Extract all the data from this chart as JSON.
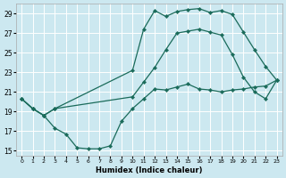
{
  "xlabel": "Humidex (Indice chaleur)",
  "bg_color": "#cce8f0",
  "grid_color": "#ffffff",
  "line_color": "#1a6b5a",
  "xlim": [
    -0.5,
    23.5
  ],
  "ylim": [
    14.5,
    30.0
  ],
  "yticks": [
    15,
    17,
    19,
    21,
    23,
    25,
    27,
    29
  ],
  "xticks": [
    0,
    1,
    2,
    3,
    4,
    5,
    6,
    7,
    8,
    9,
    10,
    11,
    12,
    13,
    14,
    15,
    16,
    17,
    18,
    19,
    20,
    21,
    22,
    23
  ],
  "line1_x": [
    0,
    1,
    2,
    3,
    10,
    11,
    12,
    13,
    14,
    15,
    16,
    17,
    18,
    19,
    20,
    21,
    22,
    23
  ],
  "line1_y": [
    20.3,
    19.3,
    18.6,
    19.3,
    23.2,
    27.4,
    29.3,
    28.7,
    29.2,
    29.4,
    29.5,
    29.1,
    29.3,
    28.9,
    27.1,
    25.3,
    23.6,
    22.2
  ],
  "line2_x": [
    0,
    1,
    2,
    3,
    4,
    5,
    6,
    7,
    8,
    9,
    10,
    11,
    12,
    13,
    14,
    15,
    16,
    17,
    18,
    19,
    20,
    21,
    22,
    23
  ],
  "line2_y": [
    20.3,
    19.3,
    18.6,
    17.3,
    16.7,
    15.3,
    15.2,
    15.2,
    15.5,
    18.0,
    19.3,
    20.3,
    21.3,
    21.2,
    21.5,
    21.8,
    21.3,
    21.2,
    21.0,
    21.2,
    21.3,
    21.5,
    21.6,
    22.2
  ],
  "line3_x": [
    0,
    1,
    2,
    3,
    10,
    11,
    12,
    13,
    14,
    15,
    16,
    17,
    18,
    19,
    20,
    21,
    22,
    23
  ],
  "line3_y": [
    20.3,
    19.3,
    18.6,
    19.3,
    20.5,
    22.0,
    23.5,
    25.3,
    27.0,
    27.2,
    27.4,
    27.1,
    26.8,
    24.8,
    22.5,
    21.0,
    20.3,
    22.2
  ]
}
